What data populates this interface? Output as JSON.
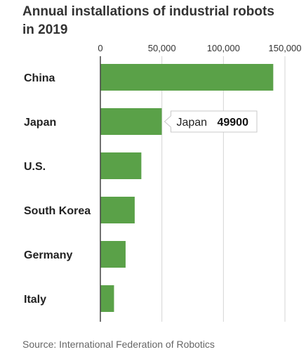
{
  "title": "Annual installations of industrial robots in 2019",
  "source": "Source: International Federation of Robotics",
  "tooltip": {
    "category": "Japan",
    "value": "49900"
  },
  "colors": {
    "bar": "#5aa148",
    "grid": "#d4d4d4",
    "axis": "#444444"
  },
  "chart_data": {
    "type": "bar",
    "orientation": "horizontal",
    "title": "Annual installations of industrial robots in 2019",
    "categories": [
      "China",
      "Japan",
      "U.S.",
      "South Korea",
      "Germany",
      "Italy"
    ],
    "values": [
      140500,
      49900,
      33300,
      27900,
      20500,
      11100
    ],
    "xlim": [
      0,
      150000
    ],
    "xticks": [
      0,
      50000,
      100000,
      150000
    ],
    "xtick_labels": [
      "0",
      "50,000",
      "100,000",
      "150,000"
    ],
    "grid": true,
    "legend": "none"
  }
}
